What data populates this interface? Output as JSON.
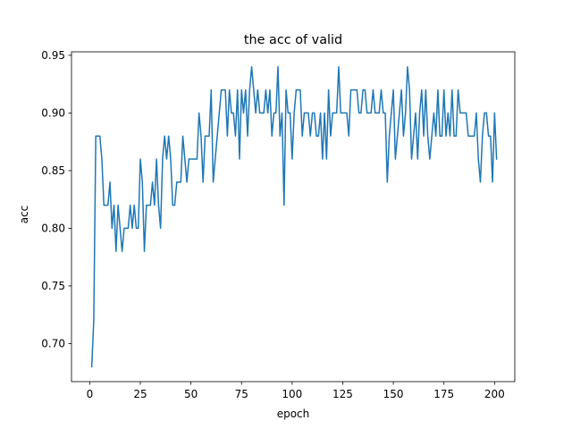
{
  "chart_data": {
    "type": "line",
    "title": "the acc of valid",
    "xlabel": "epoch",
    "ylabel": "acc",
    "xlim": [
      -9,
      210
    ],
    "ylim": [
      0.667,
      0.953
    ],
    "xticks": [
      0,
      25,
      50,
      75,
      100,
      125,
      150,
      175,
      200
    ],
    "yticks": [
      0.7,
      0.75,
      0.8,
      0.85,
      0.9,
      0.95
    ],
    "ytick_labels": [
      "0.70",
      "0.75",
      "0.80",
      "0.85",
      "0.90",
      "0.95"
    ],
    "grid": false,
    "line_color": "#1f77b4",
    "x": [
      1,
      2,
      3,
      4,
      5,
      6,
      7,
      8,
      9,
      10,
      11,
      12,
      13,
      14,
      15,
      16,
      17,
      18,
      19,
      20,
      21,
      22,
      23,
      24,
      25,
      26,
      27,
      28,
      29,
      30,
      31,
      32,
      33,
      34,
      35,
      36,
      37,
      38,
      39,
      40,
      41,
      42,
      43,
      44,
      45,
      46,
      47,
      48,
      49,
      50,
      51,
      52,
      53,
      54,
      55,
      56,
      57,
      58,
      59,
      60,
      61,
      62,
      63,
      64,
      65,
      66,
      67,
      68,
      69,
      70,
      71,
      72,
      73,
      74,
      75,
      76,
      77,
      78,
      79,
      80,
      81,
      82,
      83,
      84,
      85,
      86,
      87,
      88,
      89,
      90,
      91,
      92,
      93,
      94,
      95,
      96,
      97,
      98,
      99,
      100,
      101,
      102,
      103,
      104,
      105,
      106,
      107,
      108,
      109,
      110,
      111,
      112,
      113,
      114,
      115,
      116,
      117,
      118,
      119,
      120,
      121,
      122,
      123,
      124,
      125,
      126,
      127,
      128,
      129,
      130,
      131,
      132,
      133,
      134,
      135,
      136,
      137,
      138,
      139,
      140,
      141,
      142,
      143,
      144,
      145,
      146,
      147,
      148,
      149,
      150,
      151,
      152,
      153,
      154,
      155,
      156,
      157,
      158,
      159,
      160,
      161,
      162,
      163,
      164,
      165,
      166,
      167,
      168,
      169,
      170,
      171,
      172,
      173,
      174,
      175,
      176,
      177,
      178,
      179,
      180,
      181,
      182,
      183,
      184,
      185,
      186,
      187,
      188,
      189,
      190,
      191,
      192,
      193,
      194,
      195,
      196,
      197,
      198,
      199,
      200,
      201
    ],
    "series": [
      {
        "values": [
          0.68,
          0.72,
          0.88,
          0.88,
          0.88,
          0.86,
          0.82,
          0.82,
          0.82,
          0.84,
          0.8,
          0.82,
          0.78,
          0.82,
          0.8,
          0.78,
          0.8,
          0.8,
          0.8,
          0.82,
          0.8,
          0.82,
          0.8,
          0.8,
          0.86,
          0.84,
          0.78,
          0.82,
          0.82,
          0.82,
          0.84,
          0.82,
          0.86,
          0.82,
          0.8,
          0.86,
          0.88,
          0.86,
          0.88,
          0.86,
          0.82,
          0.82,
          0.84,
          0.84,
          0.84,
          0.88,
          0.86,
          0.84,
          0.86,
          0.86,
          0.86,
          0.86,
          0.86,
          0.9,
          0.88,
          0.84,
          0.88,
          0.88,
          0.88,
          0.92,
          0.84,
          0.86,
          0.88,
          0.9,
          0.92,
          0.92,
          0.92,
          0.88,
          0.92,
          0.9,
          0.9,
          0.88,
          0.92,
          0.86,
          0.92,
          0.9,
          0.92,
          0.88,
          0.92,
          0.94,
          0.92,
          0.9,
          0.92,
          0.9,
          0.9,
          0.9,
          0.92,
          0.9,
          0.92,
          0.88,
          0.9,
          0.9,
          0.94,
          0.88,
          0.9,
          0.82,
          0.92,
          0.9,
          0.9,
          0.86,
          0.9,
          0.92,
          0.92,
          0.92,
          0.88,
          0.9,
          0.9,
          0.9,
          0.88,
          0.9,
          0.9,
          0.88,
          0.88,
          0.9,
          0.86,
          0.9,
          0.86,
          0.92,
          0.88,
          0.9,
          0.9,
          0.9,
          0.94,
          0.9,
          0.9,
          0.9,
          0.9,
          0.88,
          0.92,
          0.92,
          0.92,
          0.92,
          0.9,
          0.9,
          0.92,
          0.92,
          0.9,
          0.9,
          0.9,
          0.92,
          0.9,
          0.9,
          0.9,
          0.92,
          0.9,
          0.9,
          0.84,
          0.88,
          0.9,
          0.92,
          0.86,
          0.88,
          0.9,
          0.92,
          0.88,
          0.9,
          0.94,
          0.92,
          0.86,
          0.88,
          0.9,
          0.86,
          0.9,
          0.92,
          0.88,
          0.92,
          0.88,
          0.86,
          0.88,
          0.9,
          0.88,
          0.92,
          0.88,
          0.88,
          0.92,
          0.88,
          0.9,
          0.88,
          0.92,
          0.88,
          0.88,
          0.92,
          0.9,
          0.9,
          0.9,
          0.9,
          0.88,
          0.88,
          0.88,
          0.88,
          0.9,
          0.86,
          0.84,
          0.88,
          0.9,
          0.9,
          0.88,
          0.88,
          0.84,
          0.9,
          0.86
        ]
      }
    ]
  }
}
